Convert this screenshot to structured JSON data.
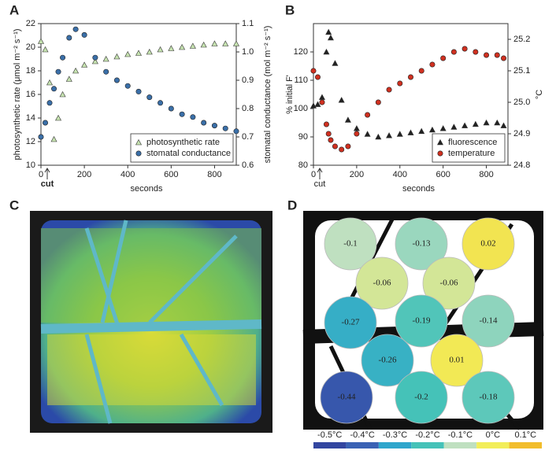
{
  "panels": {
    "a": "A",
    "b": "B",
    "c": "C",
    "d": "D"
  },
  "chart_data": [
    {
      "type": "scatter",
      "xlabel": "seconds",
      "ylabel": "photosynthetic rate (μmol m⁻² s⁻¹)",
      "y2label": "stomatal conductance (mol m⁻² s⁻¹)",
      "annotation": "cut",
      "legend": "lower right",
      "x": [
        0,
        20,
        40,
        60,
        80,
        100,
        130,
        160,
        200,
        250,
        300,
        350,
        400,
        450,
        500,
        550,
        600,
        650,
        700,
        750,
        800,
        850,
        900
      ],
      "series": [
        {
          "name": "photosynthetic rate",
          "color": "#c6e3b0",
          "marker": "triangle",
          "axis": "y",
          "values": [
            20.5,
            19.8,
            17,
            12.2,
            14,
            16,
            17.3,
            18,
            18.5,
            18.8,
            19,
            19.2,
            19.4,
            19.5,
            19.6,
            19.8,
            19.9,
            20,
            20.1,
            20.2,
            20.3,
            20.3,
            20.3
          ]
        },
        {
          "name": "stomatal conductance",
          "color": "#3a6fa8",
          "marker": "circle",
          "axis": "y2",
          "values": [
            0.7,
            0.75,
            0.82,
            0.87,
            0.93,
            0.98,
            1.05,
            1.08,
            1.06,
            0.98,
            0.93,
            0.9,
            0.88,
            0.86,
            0.84,
            0.82,
            0.8,
            0.78,
            0.77,
            0.75,
            0.74,
            0.73,
            0.72
          ]
        }
      ],
      "xlim": [
        0,
        900
      ],
      "xticks": [
        0,
        200,
        400,
        600,
        800
      ],
      "ylim": [
        10,
        22
      ],
      "yticks": [
        10,
        12,
        14,
        16,
        18,
        20,
        22
      ],
      "y2lim": [
        0.6,
        1.1
      ],
      "y2ticks": [
        0.6,
        0.7,
        0.8,
        0.9,
        {
          "value": 1,
          "label": "1.0"
        },
        1.1
      ]
    },
    {
      "type": "scatter",
      "xlabel": "seconds",
      "ylabel": "% initial F'",
      "y2label": "°C",
      "annotation": "cut",
      "legend": "lower right",
      "x": [
        0,
        20,
        40,
        60,
        70,
        80,
        100,
        130,
        160,
        200,
        250,
        300,
        350,
        400,
        450,
        500,
        550,
        600,
        650,
        700,
        750,
        800,
        850,
        880
      ],
      "series": [
        {
          "name": "fluorescence",
          "color": "#222222",
          "marker": "triangle",
          "axis": "y",
          "values": [
            101,
            101.5,
            104,
            120,
            127,
            125,
            116,
            103,
            96,
            93,
            91,
            90,
            90.5,
            91,
            91.5,
            92,
            92.5,
            93,
            93.5,
            94,
            94.5,
            95,
            95,
            94
          ]
        },
        {
          "name": "temperature",
          "color": "#d03020",
          "marker": "circle",
          "axis": "y2",
          "values": [
            25.1,
            25.08,
            25.0,
            24.93,
            24.9,
            24.88,
            24.86,
            24.85,
            24.86,
            24.9,
            24.96,
            25.0,
            25.04,
            25.06,
            25.08,
            25.1,
            25.12,
            25.14,
            25.16,
            25.17,
            25.16,
            25.15,
            25.15,
            25.14
          ]
        }
      ],
      "xlim": [
        0,
        900
      ],
      "xticks": [
        0,
        200,
        400,
        600,
        800
      ],
      "ylim": [
        80,
        130
      ],
      "yticks": [
        80,
        90,
        100,
        110,
        120
      ],
      "y2lim": [
        24.8,
        25.25
      ],
      "y2ticks": [
        24.8,
        24.9,
        {
          "value": 25,
          "label": "25.0"
        },
        25.1,
        25.2
      ]
    }
  ],
  "image_d": {
    "spots": [
      -0.1,
      -0.13,
      0.02,
      -0.06,
      -0.06,
      -0.27,
      -0.19,
      -0.14,
      -0.26,
      0.01,
      -0.44,
      -0.2,
      -0.18
    ],
    "colorbar": [
      {
        "value": -0.5,
        "label": "-0.5°C",
        "color": "#3346a0"
      },
      {
        "value": -0.4,
        "label": "-0.4°C",
        "color": "#3a62b4"
      },
      {
        "value": -0.3,
        "label": "-0.3°C",
        "color": "#2fa6cc"
      },
      {
        "value": -0.2,
        "label": "-0.2°C",
        "color": "#45c2b8"
      },
      {
        "value": -0.1,
        "label": "-0.1°C",
        "color": "#bfe0c0"
      },
      {
        "value": 0,
        "label": "0°C",
        "color": "#f2ee5a"
      },
      {
        "value": 0.1,
        "label": "0.1°C",
        "color": "#f2bd2c"
      }
    ]
  }
}
